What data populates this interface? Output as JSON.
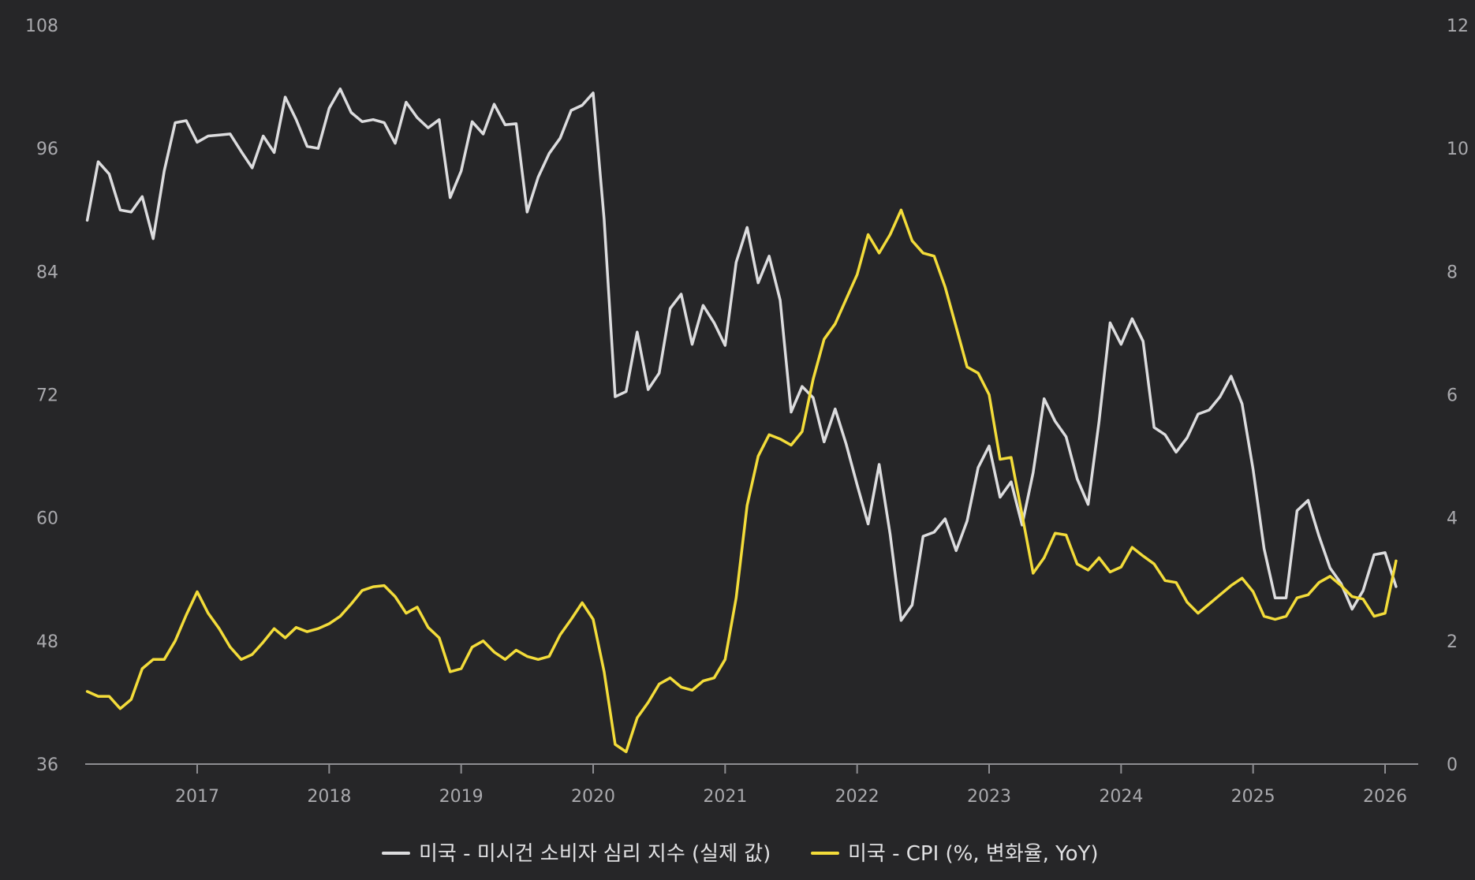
{
  "colors": {
    "background": "#262628",
    "axis": "#8e8e92",
    "tick_text": "#a9a9ad",
    "legend_text": "#e0e0e2"
  },
  "chart_data": {
    "type": "line",
    "x_ticks": [
      "2017",
      "2018",
      "2019",
      "2020",
      "2021",
      "2022",
      "2023",
      "2024",
      "2025",
      "2026"
    ],
    "x_range": [
      "2016-01",
      "2026-04"
    ],
    "y_left": {
      "ticks": [
        "108",
        "96",
        "84",
        "72",
        "60",
        "48",
        "36"
      ],
      "range": [
        36,
        108
      ]
    },
    "y_right": {
      "ticks": [
        "12",
        "10",
        "8",
        "6",
        "4",
        "2",
        "0"
      ],
      "range": [
        0,
        12
      ]
    },
    "grid": false,
    "legend_position": "bottom-center",
    "series": [
      {
        "name": "미국 - 미시건 소비자 심리 지수 (실제 값)",
        "axis": "left",
        "color": "#dcdcde",
        "points": [
          [
            "2016-03",
            89.0
          ],
          [
            "2016-04",
            94.7
          ],
          [
            "2016-05",
            93.5
          ],
          [
            "2016-06",
            90.0
          ],
          [
            "2016-07",
            89.8
          ],
          [
            "2016-08",
            91.3
          ],
          [
            "2016-09",
            87.2
          ],
          [
            "2016-10",
            93.8
          ],
          [
            "2016-11",
            98.5
          ],
          [
            "2016-12",
            98.7
          ],
          [
            "2017-01",
            96.6
          ],
          [
            "2017-02",
            97.2
          ],
          [
            "2017-03",
            97.3
          ],
          [
            "2017-04",
            97.4
          ],
          [
            "2017-05",
            95.7
          ],
          [
            "2017-06",
            94.1
          ],
          [
            "2017-07",
            97.2
          ],
          [
            "2017-08",
            95.6
          ],
          [
            "2017-09",
            101.0
          ],
          [
            "2017-10",
            98.8
          ],
          [
            "2017-11",
            96.2
          ],
          [
            "2017-12",
            96.0
          ],
          [
            "2018-01",
            99.9
          ],
          [
            "2018-02",
            101.8
          ],
          [
            "2018-03",
            99.5
          ],
          [
            "2018-04",
            98.6
          ],
          [
            "2018-05",
            98.8
          ],
          [
            "2018-06",
            98.5
          ],
          [
            "2018-07",
            96.5
          ],
          [
            "2018-08",
            100.5
          ],
          [
            "2018-09",
            99.0
          ],
          [
            "2018-10",
            98.0
          ],
          [
            "2018-11",
            98.8
          ],
          [
            "2018-12",
            91.2
          ],
          [
            "2019-01",
            93.8
          ],
          [
            "2019-02",
            98.6
          ],
          [
            "2019-03",
            97.4
          ],
          [
            "2019-04",
            100.3
          ],
          [
            "2019-05",
            98.3
          ],
          [
            "2019-06",
            98.4
          ],
          [
            "2019-07",
            89.8
          ],
          [
            "2019-08",
            93.2
          ],
          [
            "2019-09",
            95.5
          ],
          [
            "2019-10",
            97.0
          ],
          [
            "2019-11",
            99.7
          ],
          [
            "2019-12",
            100.2
          ],
          [
            "2020-01",
            101.4
          ],
          [
            "2020-02",
            89.1
          ],
          [
            "2020-03",
            71.8
          ],
          [
            "2020-04",
            72.3
          ],
          [
            "2020-05",
            78.1
          ],
          [
            "2020-06",
            72.5
          ],
          [
            "2020-07",
            74.1
          ],
          [
            "2020-08",
            80.4
          ],
          [
            "2020-09",
            81.8
          ],
          [
            "2020-10",
            76.9
          ],
          [
            "2020-11",
            80.7
          ],
          [
            "2020-12",
            79.0
          ],
          [
            "2021-01",
            76.8
          ],
          [
            "2021-02",
            84.9
          ],
          [
            "2021-03",
            88.3
          ],
          [
            "2021-04",
            82.9
          ],
          [
            "2021-05",
            85.5
          ],
          [
            "2021-06",
            81.2
          ],
          [
            "2021-07",
            70.3
          ],
          [
            "2021-08",
            72.8
          ],
          [
            "2021-09",
            71.7
          ],
          [
            "2021-10",
            67.4
          ],
          [
            "2021-11",
            70.6
          ],
          [
            "2021-12",
            67.2
          ],
          [
            "2022-01",
            63.2
          ],
          [
            "2022-02",
            59.4
          ],
          [
            "2022-03",
            65.2
          ],
          [
            "2022-04",
            58.4
          ],
          [
            "2022-05",
            50.0
          ],
          [
            "2022-06",
            51.5
          ],
          [
            "2022-07",
            58.2
          ],
          [
            "2022-08",
            58.6
          ],
          [
            "2022-09",
            59.9
          ],
          [
            "2022-10",
            56.8
          ],
          [
            "2022-11",
            59.7
          ],
          [
            "2022-12",
            64.9
          ],
          [
            "2023-01",
            67.0
          ],
          [
            "2023-02",
            62.0
          ],
          [
            "2023-03",
            63.5
          ],
          [
            "2023-04",
            59.3
          ],
          [
            "2023-05",
            64.4
          ],
          [
            "2023-06",
            71.6
          ],
          [
            "2023-07",
            69.4
          ],
          [
            "2023-08",
            67.9
          ],
          [
            "2023-09",
            63.8
          ],
          [
            "2023-10",
            61.3
          ],
          [
            "2023-11",
            69.4
          ],
          [
            "2023-12",
            79.0
          ],
          [
            "2024-01",
            76.9
          ],
          [
            "2024-02",
            79.4
          ],
          [
            "2024-03",
            77.2
          ],
          [
            "2024-04",
            68.8
          ],
          [
            "2024-05",
            68.1
          ],
          [
            "2024-06",
            66.4
          ],
          [
            "2024-07",
            67.8
          ],
          [
            "2024-08",
            70.1
          ],
          [
            "2024-09",
            70.5
          ],
          [
            "2024-10",
            71.8
          ],
          [
            "2024-11",
            73.8
          ],
          [
            "2024-12",
            71.1
          ],
          [
            "2025-01",
            64.7
          ],
          [
            "2025-02",
            57.0
          ],
          [
            "2025-03",
            52.2
          ],
          [
            "2025-04",
            52.2
          ],
          [
            "2025-05",
            60.7
          ],
          [
            "2025-06",
            61.7
          ],
          [
            "2025-07",
            58.2
          ],
          [
            "2025-08",
            55.1
          ],
          [
            "2025-09",
            53.6
          ],
          [
            "2025-10",
            51.1
          ],
          [
            "2025-11",
            52.9
          ],
          [
            "2025-12",
            56.4
          ],
          [
            "2026-01",
            56.6
          ],
          [
            "2026-02",
            53.3
          ]
        ]
      },
      {
        "name": "미국 - CPI (%, 변화율, YoY)",
        "axis": "right",
        "color": "#f3dc3a",
        "points": [
          [
            "2016-03",
            1.18
          ],
          [
            "2016-04",
            1.1
          ],
          [
            "2016-05",
            1.1
          ],
          [
            "2016-06",
            0.9
          ],
          [
            "2016-07",
            1.05
          ],
          [
            "2016-08",
            1.55
          ],
          [
            "2016-09",
            1.7
          ],
          [
            "2016-10",
            1.7
          ],
          [
            "2016-11",
            2.0
          ],
          [
            "2016-12",
            2.42
          ],
          [
            "2017-01",
            2.8
          ],
          [
            "2017-02",
            2.45
          ],
          [
            "2017-03",
            2.2
          ],
          [
            "2017-04",
            1.9
          ],
          [
            "2017-05",
            1.7
          ],
          [
            "2017-06",
            1.78
          ],
          [
            "2017-07",
            1.98
          ],
          [
            "2017-08",
            2.2
          ],
          [
            "2017-09",
            2.05
          ],
          [
            "2017-10",
            2.22
          ],
          [
            "2017-11",
            2.15
          ],
          [
            "2017-12",
            2.2
          ],
          [
            "2018-01",
            2.28
          ],
          [
            "2018-02",
            2.4
          ],
          [
            "2018-03",
            2.6
          ],
          [
            "2018-04",
            2.82
          ],
          [
            "2018-05",
            2.88
          ],
          [
            "2018-06",
            2.9
          ],
          [
            "2018-07",
            2.72
          ],
          [
            "2018-08",
            2.45
          ],
          [
            "2018-09",
            2.55
          ],
          [
            "2018-10",
            2.22
          ],
          [
            "2018-11",
            2.05
          ],
          [
            "2018-12",
            1.5
          ],
          [
            "2019-01",
            1.55
          ],
          [
            "2019-02",
            1.9
          ],
          [
            "2019-03",
            2.0
          ],
          [
            "2019-04",
            1.82
          ],
          [
            "2019-05",
            1.7
          ],
          [
            "2019-06",
            1.85
          ],
          [
            "2019-07",
            1.75
          ],
          [
            "2019-08",
            1.7
          ],
          [
            "2019-09",
            1.75
          ],
          [
            "2019-10",
            2.1
          ],
          [
            "2019-11",
            2.35
          ],
          [
            "2019-12",
            2.62
          ],
          [
            "2020-01",
            2.35
          ],
          [
            "2020-02",
            1.5
          ],
          [
            "2020-03",
            0.32
          ],
          [
            "2020-04",
            0.2
          ],
          [
            "2020-05",
            0.75
          ],
          [
            "2020-06",
            1.0
          ],
          [
            "2020-07",
            1.3
          ],
          [
            "2020-08",
            1.4
          ],
          [
            "2020-09",
            1.25
          ],
          [
            "2020-10",
            1.2
          ],
          [
            "2020-11",
            1.35
          ],
          [
            "2020-12",
            1.4
          ],
          [
            "2021-01",
            1.7
          ],
          [
            "2021-02",
            2.7
          ],
          [
            "2021-03",
            4.2
          ],
          [
            "2021-04",
            5.0
          ],
          [
            "2021-05",
            5.35
          ],
          [
            "2021-06",
            5.28
          ],
          [
            "2021-07",
            5.18
          ],
          [
            "2021-08",
            5.4
          ],
          [
            "2021-09",
            6.25
          ],
          [
            "2021-10",
            6.9
          ],
          [
            "2021-11",
            7.15
          ],
          [
            "2021-12",
            7.55
          ],
          [
            "2022-01",
            7.95
          ],
          [
            "2022-02",
            8.6
          ],
          [
            "2022-03",
            8.3
          ],
          [
            "2022-04",
            8.6
          ],
          [
            "2022-05",
            9.0
          ],
          [
            "2022-06",
            8.5
          ],
          [
            "2022-07",
            8.3
          ],
          [
            "2022-08",
            8.25
          ],
          [
            "2022-09",
            7.75
          ],
          [
            "2022-10",
            7.1
          ],
          [
            "2022-11",
            6.45
          ],
          [
            "2022-12",
            6.35
          ],
          [
            "2023-01",
            6.0
          ],
          [
            "2023-02",
            4.95
          ],
          [
            "2023-03",
            4.98
          ],
          [
            "2023-04",
            4.05
          ],
          [
            "2023-05",
            3.1
          ],
          [
            "2023-06",
            3.35
          ],
          [
            "2023-07",
            3.75
          ],
          [
            "2023-08",
            3.72
          ],
          [
            "2023-09",
            3.25
          ],
          [
            "2023-10",
            3.15
          ],
          [
            "2023-11",
            3.35
          ],
          [
            "2023-12",
            3.12
          ],
          [
            "2024-01",
            3.2
          ],
          [
            "2024-02",
            3.52
          ],
          [
            "2024-03",
            3.38
          ],
          [
            "2024-04",
            3.25
          ],
          [
            "2024-05",
            2.98
          ],
          [
            "2024-06",
            2.95
          ],
          [
            "2024-07",
            2.63
          ],
          [
            "2024-08",
            2.45
          ],
          [
            "2024-09",
            2.6
          ],
          [
            "2024-10",
            2.75
          ],
          [
            "2024-11",
            2.9
          ],
          [
            "2024-12",
            3.02
          ],
          [
            "2025-01",
            2.8
          ],
          [
            "2025-02",
            2.4
          ],
          [
            "2025-03",
            2.35
          ],
          [
            "2025-04",
            2.4
          ],
          [
            "2025-05",
            2.7
          ],
          [
            "2025-06",
            2.75
          ],
          [
            "2025-07",
            2.95
          ],
          [
            "2025-08",
            3.05
          ],
          [
            "2025-09",
            2.9
          ],
          [
            "2025-10",
            2.72
          ],
          [
            "2025-11",
            2.68
          ],
          [
            "2025-12",
            2.4
          ],
          [
            "2026-01",
            2.45
          ],
          [
            "2026-02",
            3.3
          ]
        ]
      }
    ]
  },
  "legend": [
    {
      "label": "미국 - 미시건 소비자 심리 지수 (실제 값)",
      "color": "#dcdcde"
    },
    {
      "label": "미국 - CPI (%, 변화율, YoY)",
      "color": "#f3dc3a"
    }
  ]
}
